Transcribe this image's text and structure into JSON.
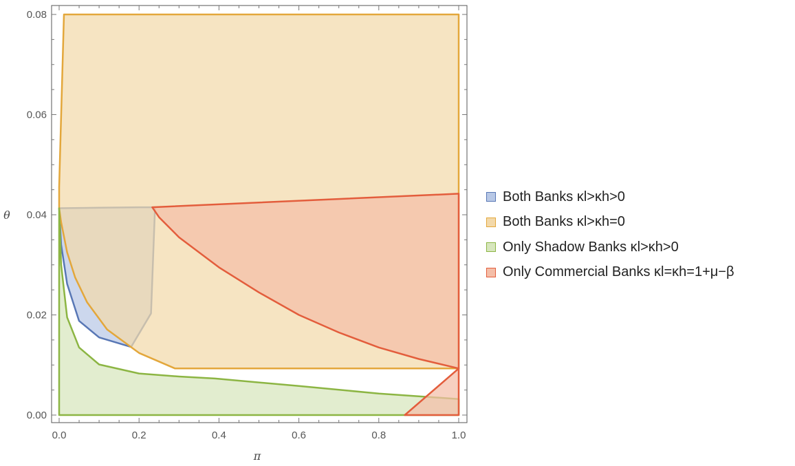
{
  "chart_data": {
    "type": "area",
    "xlabel": "π",
    "ylabel": "θ",
    "xlim": [
      0,
      1
    ],
    "ylim": [
      0,
      0.08
    ],
    "x_ticks": [
      "0.0",
      "0.2",
      "0.4",
      "0.6",
      "0.8",
      "1.0"
    ],
    "y_ticks": [
      "0.00",
      "0.02",
      "0.04",
      "0.06",
      "0.08"
    ],
    "legend_position": "right",
    "series": [
      {
        "name": "Both Banks κl>κh>0",
        "fill": "#b8c8e6",
        "stroke": "#5877b5",
        "boundary": [
          [
            0.0,
            0.0413
          ],
          [
            0.1,
            0.0414
          ],
          [
            0.2,
            0.0415
          ],
          [
            0.24,
            0.0415
          ],
          [
            0.24,
            0.0415
          ],
          [
            0.23,
            0.0203
          ],
          [
            0.18,
            0.0136
          ],
          [
            0.1,
            0.0155
          ],
          [
            0.05,
            0.0188
          ],
          [
            0.02,
            0.0262
          ],
          [
            0.005,
            0.034
          ],
          [
            0.0,
            0.0413
          ]
        ]
      },
      {
        "name": "Both Banks κl>κh=0",
        "fill": "#f3d9aa",
        "stroke": "#e3a73b",
        "boundary": [
          [
            0.012,
            0.08
          ],
          [
            1.0,
            0.08
          ],
          [
            1.0,
            0.0093
          ],
          [
            0.29,
            0.0093
          ],
          [
            0.2,
            0.0124
          ],
          [
            0.12,
            0.0171
          ],
          [
            0.07,
            0.0225
          ],
          [
            0.04,
            0.0275
          ],
          [
            0.02,
            0.0325
          ],
          [
            0.005,
            0.0385
          ],
          [
            0.0,
            0.0413
          ],
          [
            0.0,
            0.0455
          ],
          [
            0.012,
            0.08
          ]
        ]
      },
      {
        "name": "Only Shadow Banks κl>κh>0",
        "fill": "#d7e6bd",
        "stroke": "#8cb543",
        "boundary": [
          [
            0.0,
            0.0
          ],
          [
            1.0,
            0.0
          ],
          [
            1.0,
            0.0032
          ],
          [
            0.8,
            0.0043
          ],
          [
            0.6,
            0.0058
          ],
          [
            0.39,
            0.0073
          ],
          [
            0.3,
            0.0077
          ],
          [
            0.2,
            0.0083
          ],
          [
            0.1,
            0.0101
          ],
          [
            0.05,
            0.0135
          ],
          [
            0.02,
            0.0195
          ],
          [
            0.005,
            0.03
          ],
          [
            0.0,
            0.0413
          ],
          [
            0.0,
            0.0
          ]
        ]
      },
      {
        "name": "Only Commercial Banks κl=κh=1+μ−β",
        "fill": "#f4bea8",
        "stroke": "#e35d3c",
        "boundary": [
          [
            0.233,
            0.0415
          ],
          [
            1.0,
            0.0442
          ],
          [
            1.0,
            0.0093
          ],
          [
            0.9,
            0.0112
          ],
          [
            0.8,
            0.0135
          ],
          [
            0.7,
            0.0165
          ],
          [
            0.6,
            0.02
          ],
          [
            0.5,
            0.0245
          ],
          [
            0.4,
            0.0295
          ],
          [
            0.3,
            0.0355
          ],
          [
            0.25,
            0.0395
          ],
          [
            0.233,
            0.0415
          ]
        ],
        "boundary_2": [
          [
            0.865,
            0.0
          ],
          [
            1.0,
            0.0
          ],
          [
            1.0,
            0.0093
          ],
          [
            0.865,
            0.0
          ]
        ]
      }
    ]
  }
}
